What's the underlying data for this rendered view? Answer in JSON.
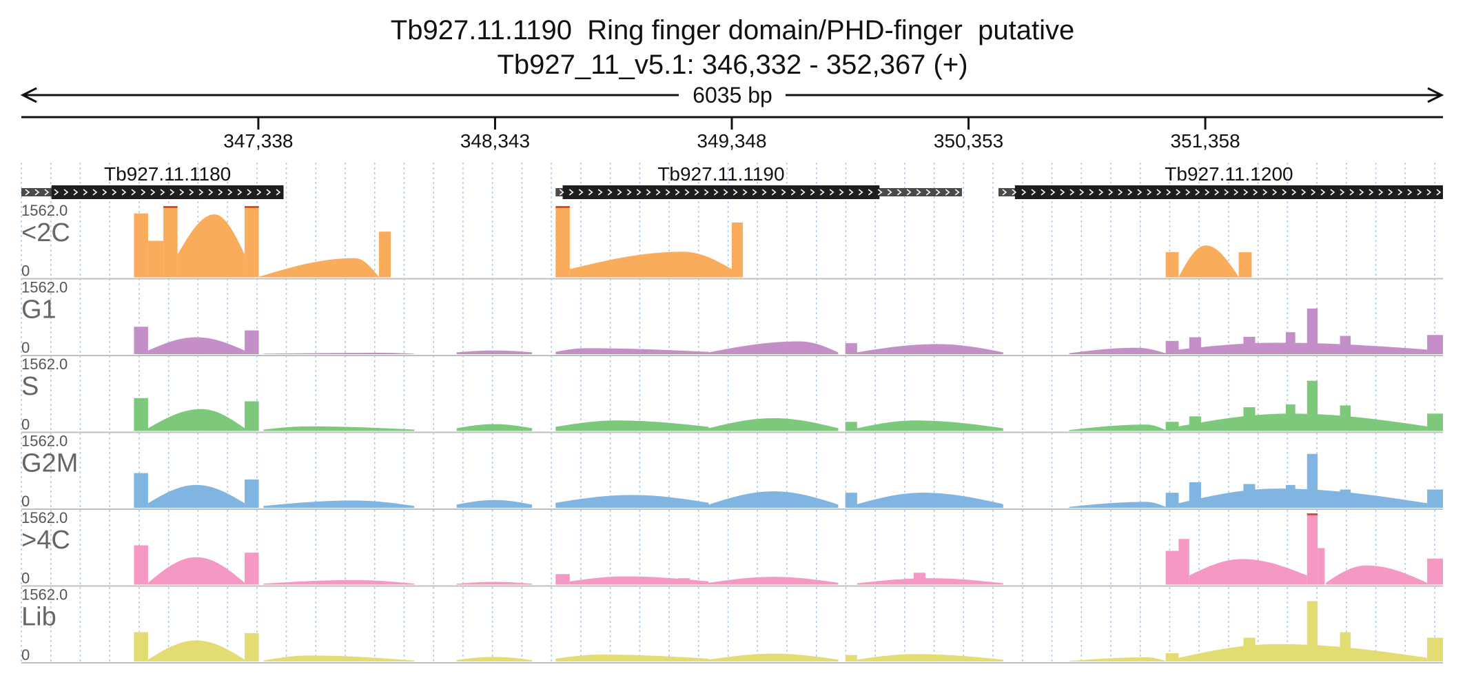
{
  "title": "Tb927.11.1190  Ring finger domain/PHD-finger  putative",
  "subtitle": "Tb927_11_v5.1: 346,332 - 352,367 (+)",
  "span_label": "6035 bp",
  "chart_data": {
    "type": "area",
    "region": {
      "start": 346332,
      "end": 352367
    },
    "ruler_ticks": [
      {
        "pos": 347338,
        "label": "347,338"
      },
      {
        "pos": 348343,
        "label": "348,343"
      },
      {
        "pos": 349348,
        "label": "349,348"
      },
      {
        "pos": 350353,
        "label": "350,353"
      },
      {
        "pos": 351358,
        "label": "351,358"
      }
    ],
    "grid_spacing_bp": 125,
    "genes": [
      {
        "name": "Tb927.11.1180",
        "start": 346332,
        "end": 347445,
        "cds_start": 346460,
        "cds_end": 347445
      },
      {
        "name": "Tb927.11.1190",
        "start": 348600,
        "end": 350325,
        "cds_start": 348630,
        "cds_end": 349975
      },
      {
        "name": "Tb927.11.1200",
        "start": 350480,
        "end": 352367,
        "cds_start": 350550,
        "cds_end": 352367
      }
    ],
    "track_max": 1562.0,
    "track_min": 0,
    "tracks": [
      {
        "name": "<2C",
        "color": "#f9ad5c",
        "scale_max": "1562.0",
        "scale_min": "0",
        "bars": [
          {
            "start": 346810,
            "end": 346870,
            "value": 1400
          },
          {
            "start": 346935,
            "end": 346995,
            "value": 1562
          },
          {
            "start": 347280,
            "end": 347340,
            "value": 1562
          },
          {
            "start": 348600,
            "end": 348660,
            "value": 1562
          },
          {
            "start": 349348,
            "end": 349395,
            "value": 1200
          },
          {
            "start": 347850,
            "end": 347900,
            "value": 1000
          },
          {
            "start": 351190,
            "end": 351245,
            "value": 550
          },
          {
            "start": 351500,
            "end": 351555,
            "value": 550
          }
        ],
        "curves": [
          {
            "start": 346870,
            "end": 346935,
            "peak": 800,
            "base": 800,
            "peak_at": 0.5
          },
          {
            "start": 346995,
            "end": 347280,
            "peak": 1380,
            "base": 500,
            "peak_at": 0.55
          },
          {
            "start": 347340,
            "end": 347850,
            "peak": 420,
            "base": 10,
            "peak_at": 0.8
          },
          {
            "start": 348660,
            "end": 349348,
            "peak": 560,
            "base": 180,
            "peak_at": 0.7
          },
          {
            "start": 351245,
            "end": 351500,
            "peak": 700,
            "base": 10,
            "peak_at": 0.45
          }
        ]
      },
      {
        "name": "G1",
        "color": "#c48fc8",
        "scale_max": "1562.0",
        "scale_min": "0",
        "bars": [
          {
            "start": 346810,
            "end": 346870,
            "value": 600
          },
          {
            "start": 347280,
            "end": 347340,
            "value": 520
          },
          {
            "start": 349830,
            "end": 349880,
            "value": 240
          },
          {
            "start": 351190,
            "end": 351245,
            "value": 290
          },
          {
            "start": 351290,
            "end": 351340,
            "value": 370
          },
          {
            "start": 351520,
            "end": 351570,
            "value": 380
          },
          {
            "start": 351700,
            "end": 351740,
            "value": 480
          },
          {
            "start": 351790,
            "end": 351835,
            "value": 1000
          },
          {
            "start": 351930,
            "end": 351975,
            "value": 400
          },
          {
            "start": 352300,
            "end": 352367,
            "value": 420
          }
        ],
        "curves": [
          {
            "start": 346870,
            "end": 347280,
            "peak": 370,
            "base": 80,
            "peak_at": 0.5
          },
          {
            "start": 347360,
            "end": 348000,
            "peak": 30,
            "base": 10,
            "peak_at": 0.8
          },
          {
            "start": 348180,
            "end": 348500,
            "peak": 80,
            "base": 40,
            "peak_at": 0.5
          },
          {
            "start": 348600,
            "end": 349250,
            "peak": 130,
            "base": 50,
            "peak_at": 0.2
          },
          {
            "start": 349250,
            "end": 349800,
            "peak": 280,
            "base": 40,
            "peak_at": 0.7
          },
          {
            "start": 349880,
            "end": 350500,
            "peak": 220,
            "base": 40,
            "peak_at": 0.55
          },
          {
            "start": 350780,
            "end": 351190,
            "peak": 140,
            "base": 20,
            "peak_at": 0.7
          },
          {
            "start": 351245,
            "end": 352300,
            "peak": 250,
            "base": 100,
            "peak_at": 0.4
          }
        ]
      },
      {
        "name": "S",
        "color": "#7dc97b",
        "scale_max": "1562.0",
        "scale_min": "0",
        "bars": [
          {
            "start": 346810,
            "end": 346870,
            "value": 720
          },
          {
            "start": 347280,
            "end": 347340,
            "value": 650
          },
          {
            "start": 349830,
            "end": 349880,
            "value": 200
          },
          {
            "start": 351190,
            "end": 351245,
            "value": 200
          },
          {
            "start": 351290,
            "end": 351340,
            "value": 320
          },
          {
            "start": 351520,
            "end": 351570,
            "value": 520
          },
          {
            "start": 351700,
            "end": 351740,
            "value": 580
          },
          {
            "start": 351790,
            "end": 351835,
            "value": 1100
          },
          {
            "start": 351930,
            "end": 351975,
            "value": 560
          },
          {
            "start": 352300,
            "end": 352367,
            "value": 380
          }
        ],
        "curves": [
          {
            "start": 346870,
            "end": 347280,
            "peak": 480,
            "base": 60,
            "peak_at": 0.55
          },
          {
            "start": 347360,
            "end": 348000,
            "peak": 100,
            "base": 30,
            "peak_at": 0.3
          },
          {
            "start": 348180,
            "end": 348500,
            "peak": 150,
            "base": 60,
            "peak_at": 0.5
          },
          {
            "start": 348600,
            "end": 349250,
            "peak": 230,
            "base": 90,
            "peak_at": 0.4
          },
          {
            "start": 349250,
            "end": 349800,
            "peak": 280,
            "base": 60,
            "peak_at": 0.5
          },
          {
            "start": 349880,
            "end": 350500,
            "peak": 230,
            "base": 60,
            "peak_at": 0.4
          },
          {
            "start": 350780,
            "end": 351190,
            "peak": 140,
            "base": 20,
            "peak_at": 0.8
          },
          {
            "start": 351245,
            "end": 352300,
            "peak": 380,
            "base": 100,
            "peak_at": 0.45
          }
        ]
      },
      {
        "name": "G2M",
        "color": "#7fb5e0",
        "scale_max": "1562.0",
        "scale_min": "0",
        "bars": [
          {
            "start": 346810,
            "end": 346870,
            "value": 760
          },
          {
            "start": 347280,
            "end": 347340,
            "value": 620
          },
          {
            "start": 349830,
            "end": 349880,
            "value": 330
          },
          {
            "start": 351190,
            "end": 351245,
            "value": 330
          },
          {
            "start": 351290,
            "end": 351340,
            "value": 560
          },
          {
            "start": 351520,
            "end": 351570,
            "value": 520
          },
          {
            "start": 351700,
            "end": 351740,
            "value": 500
          },
          {
            "start": 351790,
            "end": 351835,
            "value": 1180
          },
          {
            "start": 351930,
            "end": 351975,
            "value": 400
          },
          {
            "start": 352300,
            "end": 352367,
            "value": 400
          }
        ],
        "curves": [
          {
            "start": 346870,
            "end": 347280,
            "peak": 500,
            "base": 100,
            "peak_at": 0.5
          },
          {
            "start": 347360,
            "end": 348000,
            "peak": 160,
            "base": 40,
            "peak_at": 0.6
          },
          {
            "start": 348180,
            "end": 348500,
            "peak": 170,
            "base": 70,
            "peak_at": 0.5
          },
          {
            "start": 348600,
            "end": 349250,
            "peak": 280,
            "base": 110,
            "peak_at": 0.5
          },
          {
            "start": 349250,
            "end": 349800,
            "peak": 360,
            "base": 70,
            "peak_at": 0.5
          },
          {
            "start": 349880,
            "end": 350500,
            "peak": 330,
            "base": 80,
            "peak_at": 0.45
          },
          {
            "start": 350780,
            "end": 351190,
            "peak": 130,
            "base": 20,
            "peak_at": 0.8
          },
          {
            "start": 351245,
            "end": 352300,
            "peak": 420,
            "base": 100,
            "peak_at": 0.4
          }
        ]
      },
      {
        "name": ">4C",
        "color": "#f598c4",
        "scale_max": "1562.0",
        "scale_min": "0",
        "bars": [
          {
            "start": 346810,
            "end": 346870,
            "value": 860
          },
          {
            "start": 347280,
            "end": 347340,
            "value": 700
          },
          {
            "start": 348600,
            "end": 348660,
            "value": 230
          },
          {
            "start": 349120,
            "end": 349170,
            "value": 140
          },
          {
            "start": 350120,
            "end": 350170,
            "value": 260
          },
          {
            "start": 351190,
            "end": 351245,
            "value": 740
          },
          {
            "start": 351245,
            "end": 351290,
            "value": 1000
          },
          {
            "start": 351790,
            "end": 351835,
            "value": 1562
          },
          {
            "start": 351835,
            "end": 351865,
            "value": 800
          },
          {
            "start": 352300,
            "end": 352367,
            "value": 570
          }
        ],
        "curves": [
          {
            "start": 346870,
            "end": 347280,
            "peak": 600,
            "base": 40,
            "peak_at": 0.5
          },
          {
            "start": 347360,
            "end": 348000,
            "peak": 100,
            "base": 20,
            "peak_at": 0.6
          },
          {
            "start": 348180,
            "end": 348500,
            "peak": 60,
            "base": 20,
            "peak_at": 0.5
          },
          {
            "start": 348660,
            "end": 349250,
            "peak": 180,
            "base": 70,
            "peak_at": 0.4
          },
          {
            "start": 349250,
            "end": 349800,
            "peak": 170,
            "base": 40,
            "peak_at": 0.5
          },
          {
            "start": 349880,
            "end": 350500,
            "peak": 140,
            "base": 30,
            "peak_at": 0.5
          },
          {
            "start": 351290,
            "end": 351790,
            "peak": 560,
            "base": 200,
            "peak_at": 0.45
          },
          {
            "start": 351870,
            "end": 352300,
            "peak": 420,
            "base": 40,
            "peak_at": 0.4
          }
        ]
      },
      {
        "name": "Lib",
        "color": "#e2dc72",
        "scale_max": "1562.0",
        "scale_min": "0",
        "bars": [
          {
            "start": 346810,
            "end": 346870,
            "value": 640
          },
          {
            "start": 347280,
            "end": 347340,
            "value": 620
          },
          {
            "start": 349830,
            "end": 349880,
            "value": 140
          },
          {
            "start": 351190,
            "end": 351245,
            "value": 180
          },
          {
            "start": 351520,
            "end": 351570,
            "value": 520
          },
          {
            "start": 351790,
            "end": 351835,
            "value": 1320
          },
          {
            "start": 351930,
            "end": 351975,
            "value": 640
          },
          {
            "start": 352300,
            "end": 352367,
            "value": 520
          }
        ],
        "curves": [
          {
            "start": 346870,
            "end": 347280,
            "peak": 460,
            "base": 40,
            "peak_at": 0.5
          },
          {
            "start": 347360,
            "end": 348000,
            "peak": 130,
            "base": 20,
            "peak_at": 0.3
          },
          {
            "start": 348180,
            "end": 348500,
            "peak": 100,
            "base": 30,
            "peak_at": 0.5
          },
          {
            "start": 348600,
            "end": 349250,
            "peak": 150,
            "base": 60,
            "peak_at": 0.3
          },
          {
            "start": 349250,
            "end": 349800,
            "peak": 170,
            "base": 40,
            "peak_at": 0.5
          },
          {
            "start": 349880,
            "end": 350500,
            "peak": 160,
            "base": 40,
            "peak_at": 0.4
          },
          {
            "start": 350780,
            "end": 351190,
            "peak": 90,
            "base": 10,
            "peak_at": 0.8
          },
          {
            "start": 351245,
            "end": 352300,
            "peak": 380,
            "base": 80,
            "peak_at": 0.4
          }
        ]
      }
    ]
  }
}
